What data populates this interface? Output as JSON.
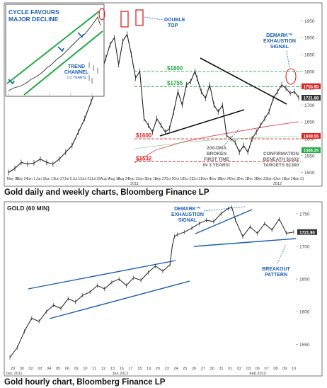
{
  "chart_data": [
    {
      "type": "line",
      "title": "",
      "caption": "Gold daily and weekly charts, Bloomberg Finance LP",
      "ylim": [
        1495,
        1995
      ],
      "y_ticks": [
        1500,
        1550,
        1600,
        1650,
        1700,
        1750,
        1800,
        1850,
        1900,
        1950
      ],
      "x_ticks": [
        "May 16",
        "May 24",
        "Jun 1",
        "Jun 9",
        "Jun 17",
        "Jun 27",
        "Jul 5",
        "Jul 13",
        "Jul 21",
        "Jul 29",
        "Aug 8",
        "Aug 16",
        "Aug 24",
        "Sep 1",
        "Sep 9",
        "Sep 19",
        "Sep 27",
        "Oct 5",
        "Oct 13",
        "Oct 21",
        "Oct 31",
        "Nov 8",
        "Nov 16",
        "Nov 24",
        "Dec 2",
        "Dec 12",
        "Dec 20",
        "Dec 29",
        "Jan 6",
        "Jan 16",
        "Jan 24",
        "Jan 31"
      ],
      "year_labels": [
        "2011",
        "2012"
      ],
      "series": [
        {
          "name": "",
          "color": "#222222",
          "points": [
            [
              0,
              1500
            ],
            [
              3,
              1512
            ],
            [
              6,
              1530
            ],
            [
              9,
              1525
            ],
            [
              12,
              1528
            ],
            [
              15,
              1540
            ],
            [
              18,
              1530
            ],
            [
              21,
              1525
            ],
            [
              24,
              1540
            ],
            [
              27,
              1560
            ],
            [
              30,
              1580
            ],
            [
              33,
              1620
            ],
            [
              36,
              1660
            ],
            [
              39,
              1710
            ],
            [
              42,
              1760
            ],
            [
              44,
              1800
            ],
            [
              46,
              1840
            ],
            [
              48,
              1880
            ],
            [
              50,
              1900
            ],
            [
              52,
              1820
            ],
            [
              54,
              1890
            ],
            [
              56,
              1910
            ],
            [
              58,
              1850
            ],
            [
              60,
              1780
            ],
            [
              62,
              1800
            ],
            [
              64,
              1660
            ],
            [
              66,
              1640
            ],
            [
              68,
              1620
            ],
            [
              70,
              1660
            ],
            [
              72,
              1640
            ],
            [
              74,
              1620
            ],
            [
              76,
              1630
            ],
            [
              78,
              1680
            ],
            [
              80,
              1740
            ],
            [
              82,
              1700
            ],
            [
              84,
              1760
            ],
            [
              86,
              1770
            ],
            [
              88,
              1800
            ],
            [
              89,
              1780
            ],
            [
              91,
              1740
            ],
            [
              93,
              1720
            ],
            [
              95,
              1760
            ],
            [
              97,
              1700
            ],
            [
              99,
              1680
            ],
            [
              101,
              1700
            ],
            [
              103,
              1610
            ],
            [
              105,
              1600
            ],
            [
              107,
              1590
            ],
            [
              109,
              1560
            ],
            [
              111,
              1580
            ],
            [
              113,
              1560
            ],
            [
              115,
              1600
            ],
            [
              117,
              1620
            ],
            [
              119,
              1640
            ],
            [
              121,
              1660
            ],
            [
              123,
              1680
            ],
            [
              125,
              1720
            ],
            [
              127,
              1740
            ],
            [
              129,
              1760
            ],
            [
              131,
              1750
            ],
            [
              133,
              1735
            ],
            [
              135,
              1740
            ],
            [
              137,
              1722
            ]
          ]
        }
      ],
      "levels": [
        {
          "label": "$1800",
          "value": 1800,
          "color": "#22aa44"
        },
        {
          "label": "$1755",
          "value": 1755,
          "color": "#22aa44"
        },
        {
          "label": "$1600",
          "value": 1600,
          "color": "#dd2222"
        },
        {
          "label": "$1532",
          "value": 1532,
          "color": "#dd2222"
        }
      ],
      "price_tags": [
        {
          "label": "1755.90",
          "value": 1755.9,
          "color": "#dd2222"
        },
        {
          "label": "1721.88",
          "value": 1721.88,
          "color": "#333333"
        },
        {
          "label": "1608.55",
          "value": 1608.55,
          "color": "#dd2222"
        },
        {
          "label": "1566.25",
          "value": 1566.25,
          "color": "#22aa44"
        }
      ],
      "annotations": {
        "double_top": "DOUBLE TOP",
        "demark": "DEMARK™ EXHAUSTION SIGNAL",
        "dma": "200-DMA BROKEN FIRST TIME IN 3 YEARS!",
        "confirmation": "CONFIRMATION BENEATH $1632 TARGETS $1300"
      },
      "inset": {
        "title": "CYCLE FAVOURS MAJOR DECLINE",
        "channel_label": "TREND CHANNEL (12 YEARS)"
      }
    },
    {
      "type": "line",
      "title": "GOLD (60 MIN)",
      "caption": "Gold hourly chart, Bloomberg Finance LP",
      "ylim": [
        1520,
        1765
      ],
      "y_ticks": [
        1550,
        1600,
        1650,
        1700,
        1750
      ],
      "x_ticks": [
        "29",
        "30",
        "02",
        "03",
        "04",
        "05",
        "06",
        "09",
        "10",
        "11",
        "12",
        "13",
        "16",
        "17",
        "18",
        "19",
        "20",
        "23",
        "24",
        "25",
        "26",
        "27",
        "30",
        "31",
        "01",
        "02",
        "03",
        "06",
        "07",
        "08",
        "09",
        "10"
      ],
      "year_labels": [
        "Dec 2011",
        "Jan 2012",
        "Feb 2012"
      ],
      "series": [
        {
          "name": "",
          "color": "#222222",
          "points": [
            [
              0,
              1530
            ],
            [
              1,
              1545
            ],
            [
              2,
              1570
            ],
            [
              3,
              1590
            ],
            [
              4,
              1585
            ],
            [
              5,
              1600
            ],
            [
              6,
              1610
            ],
            [
              7,
              1605
            ],
            [
              8,
              1620
            ],
            [
              9,
              1615
            ],
            [
              10,
              1625
            ],
            [
              11,
              1630
            ],
            [
              12,
              1640
            ],
            [
              13,
              1635
            ],
            [
              14,
              1645
            ],
            [
              15,
              1650
            ],
            [
              16,
              1640
            ],
            [
              17,
              1652
            ],
            [
              18,
              1648
            ],
            [
              19,
              1660
            ],
            [
              20,
              1670
            ],
            [
              21,
              1662
            ],
            [
              22,
              1672
            ],
            [
              22.3,
              1700
            ],
            [
              22.6,
              1715
            ],
            [
              23,
              1718
            ],
            [
              24,
              1722
            ],
            [
              25,
              1728
            ],
            [
              26,
              1735
            ],
            [
              27,
              1740
            ],
            [
              28,
              1738
            ],
            [
              29,
              1750
            ],
            [
              30,
              1758
            ],
            [
              30.5,
              1760
            ],
            [
              31,
              1740
            ],
            [
              32,
              1715
            ],
            [
              33,
              1730
            ],
            [
              34,
              1720
            ],
            [
              35,
              1735
            ],
            [
              36,
              1725
            ],
            [
              37,
              1742
            ],
            [
              38,
              1720
            ],
            [
              39,
              1722
            ]
          ]
        }
      ],
      "price_tags": [
        {
          "label": "1721.90",
          "value": 1721.9,
          "color": "#333333"
        }
      ],
      "annotations": {
        "demark": "DEMARK™ EXHAUSTION SIGNAL",
        "breakout": "BREAKOUT PATTERN"
      }
    }
  ]
}
